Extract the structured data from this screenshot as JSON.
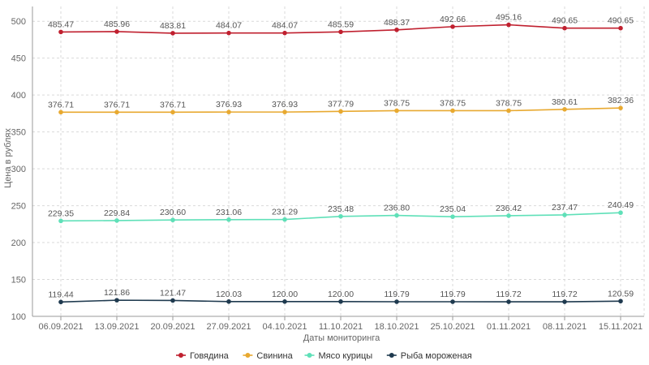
{
  "chart_data": {
    "type": "line",
    "xlabel": "Даты мониторинга",
    "ylabel": "Цена в рублях",
    "ylim": [
      100,
      520
    ],
    "yticks": [
      100,
      150,
      200,
      250,
      300,
      350,
      400,
      450,
      500
    ],
    "grid": true,
    "legend_position": "bottom",
    "categories": [
      "06.09.2021",
      "13.09.2021",
      "20.09.2021",
      "27.09.2021",
      "04.10.2021",
      "11.10.2021",
      "18.10.2021",
      "25.10.2021",
      "01.11.2021",
      "08.11.2021",
      "15.11.2021"
    ],
    "series": [
      {
        "name": "Говядина",
        "color": "#c0202f",
        "values": [
          485.47,
          485.96,
          483.81,
          484.07,
          484.07,
          485.59,
          488.37,
          492.66,
          495.16,
          490.65,
          490.65
        ],
        "labels": [
          "485.47",
          "485.96",
          "483.81",
          "484.07",
          "484.07",
          "485.59",
          "488.37",
          "492.66",
          "495.16",
          "490.65",
          "490.65"
        ]
      },
      {
        "name": "Свинина",
        "color": "#e8a930",
        "values": [
          376.71,
          376.71,
          376.71,
          376.93,
          376.93,
          377.79,
          378.75,
          378.75,
          378.75,
          380.61,
          382.36
        ],
        "labels": [
          "376.71",
          "376.71",
          "376.71",
          "376.93",
          "376.93",
          "377.79",
          "378.75",
          "378.75",
          "378.75",
          "380.61",
          "382.36"
        ]
      },
      {
        "name": "Мясо курицы",
        "color": "#5fe0b8",
        "values": [
          229.35,
          229.84,
          230.6,
          231.06,
          231.29,
          235.48,
          236.8,
          235.04,
          236.42,
          237.47,
          240.49
        ],
        "labels": [
          "229.35",
          "229.84",
          "230.60",
          "231.06",
          "231.29",
          "235.48",
          "236.80",
          "235.04",
          "236.42",
          "237.47",
          "240.49"
        ]
      },
      {
        "name": "Рыба мороженая",
        "color": "#1f3a4f",
        "values": [
          119.44,
          121.86,
          121.47,
          120.03,
          120.0,
          120.0,
          119.79,
          119.79,
          119.72,
          119.72,
          120.59
        ],
        "labels": [
          "119.44",
          "121.86",
          "121.47",
          "120.03",
          "120.00",
          "120.00",
          "119.79",
          "119.79",
          "119.72",
          "119.72",
          "120.59"
        ]
      }
    ]
  }
}
